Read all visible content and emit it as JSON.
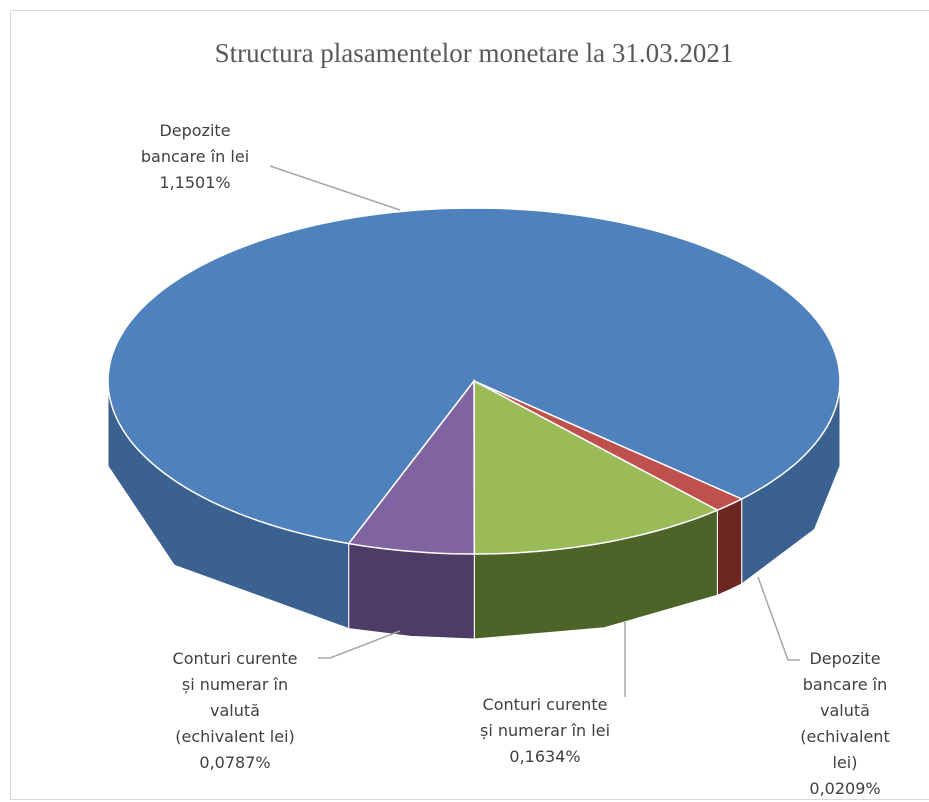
{
  "chart_data": {
    "type": "pie3d",
    "title": "Structura plasamentelor monetare la 31.03.2021",
    "categories": [
      "Depozite\nbancare în lei",
      "Depozite\nbancare în valută\n(echivalent lei)",
      "Conturi curente\nși numerar în lei",
      "Conturi curente\nși numerar în\nvalută\n(echivalent lei)"
    ],
    "values": [
      1.1501,
      0.0209,
      0.1634,
      0.0787
    ],
    "value_labels": [
      "1,1501%",
      "0,0209%",
      "0,1634%",
      "0,0787%"
    ],
    "colors": [
      "#4f81bd",
      "#c0504d",
      "#9bbb59",
      "#8064a2"
    ],
    "side_colors": [
      "#3b6190",
      "#6e2623",
      "#4d6429",
      "#4d3d66"
    ]
  }
}
